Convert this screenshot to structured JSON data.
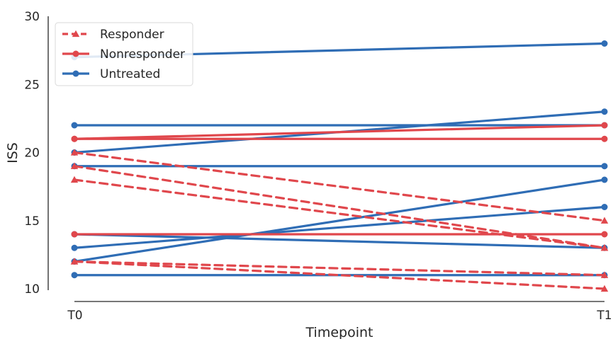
{
  "chart_data": {
    "type": "line",
    "title": "",
    "xlabel": "Timepoint",
    "ylabel": "ISS",
    "categories": [
      "T0",
      "T1"
    ],
    "ylim": [
      10,
      30
    ],
    "yticks": [
      10,
      15,
      20,
      25,
      30
    ],
    "grid": false,
    "legend": {
      "placement": "top-left",
      "entries": [
        {
          "label": "Responder",
          "color": "#e0474c",
          "style": "dashed",
          "marker": "triangle"
        },
        {
          "label": "Nonresponder",
          "color": "#e0474c",
          "style": "solid",
          "marker": "circle"
        },
        {
          "label": "Untreated",
          "color": "#2f6db5",
          "style": "solid",
          "marker": "circle"
        }
      ]
    },
    "series": [
      {
        "group": "Untreated",
        "values": [
          27,
          28
        ]
      },
      {
        "group": "Untreated",
        "values": [
          22,
          22
        ]
      },
      {
        "group": "Untreated",
        "values": [
          20,
          23
        ]
      },
      {
        "group": "Untreated",
        "values": [
          19,
          19
        ]
      },
      {
        "group": "Untreated",
        "values": [
          14,
          13
        ]
      },
      {
        "group": "Untreated",
        "values": [
          13,
          16
        ]
      },
      {
        "group": "Untreated",
        "values": [
          12,
          18
        ]
      },
      {
        "group": "Untreated",
        "values": [
          11,
          11
        ]
      },
      {
        "group": "Nonresponder",
        "values": [
          21,
          21
        ]
      },
      {
        "group": "Nonresponder",
        "values": [
          21,
          22
        ]
      },
      {
        "group": "Nonresponder",
        "values": [
          14,
          14
        ]
      },
      {
        "group": "Responder",
        "values": [
          20,
          15
        ]
      },
      {
        "group": "Responder",
        "values": [
          19,
          13
        ]
      },
      {
        "group": "Responder",
        "values": [
          18,
          13
        ]
      },
      {
        "group": "Responder",
        "values": [
          12,
          11
        ]
      },
      {
        "group": "Responder",
        "values": [
          12,
          10
        ]
      }
    ]
  }
}
